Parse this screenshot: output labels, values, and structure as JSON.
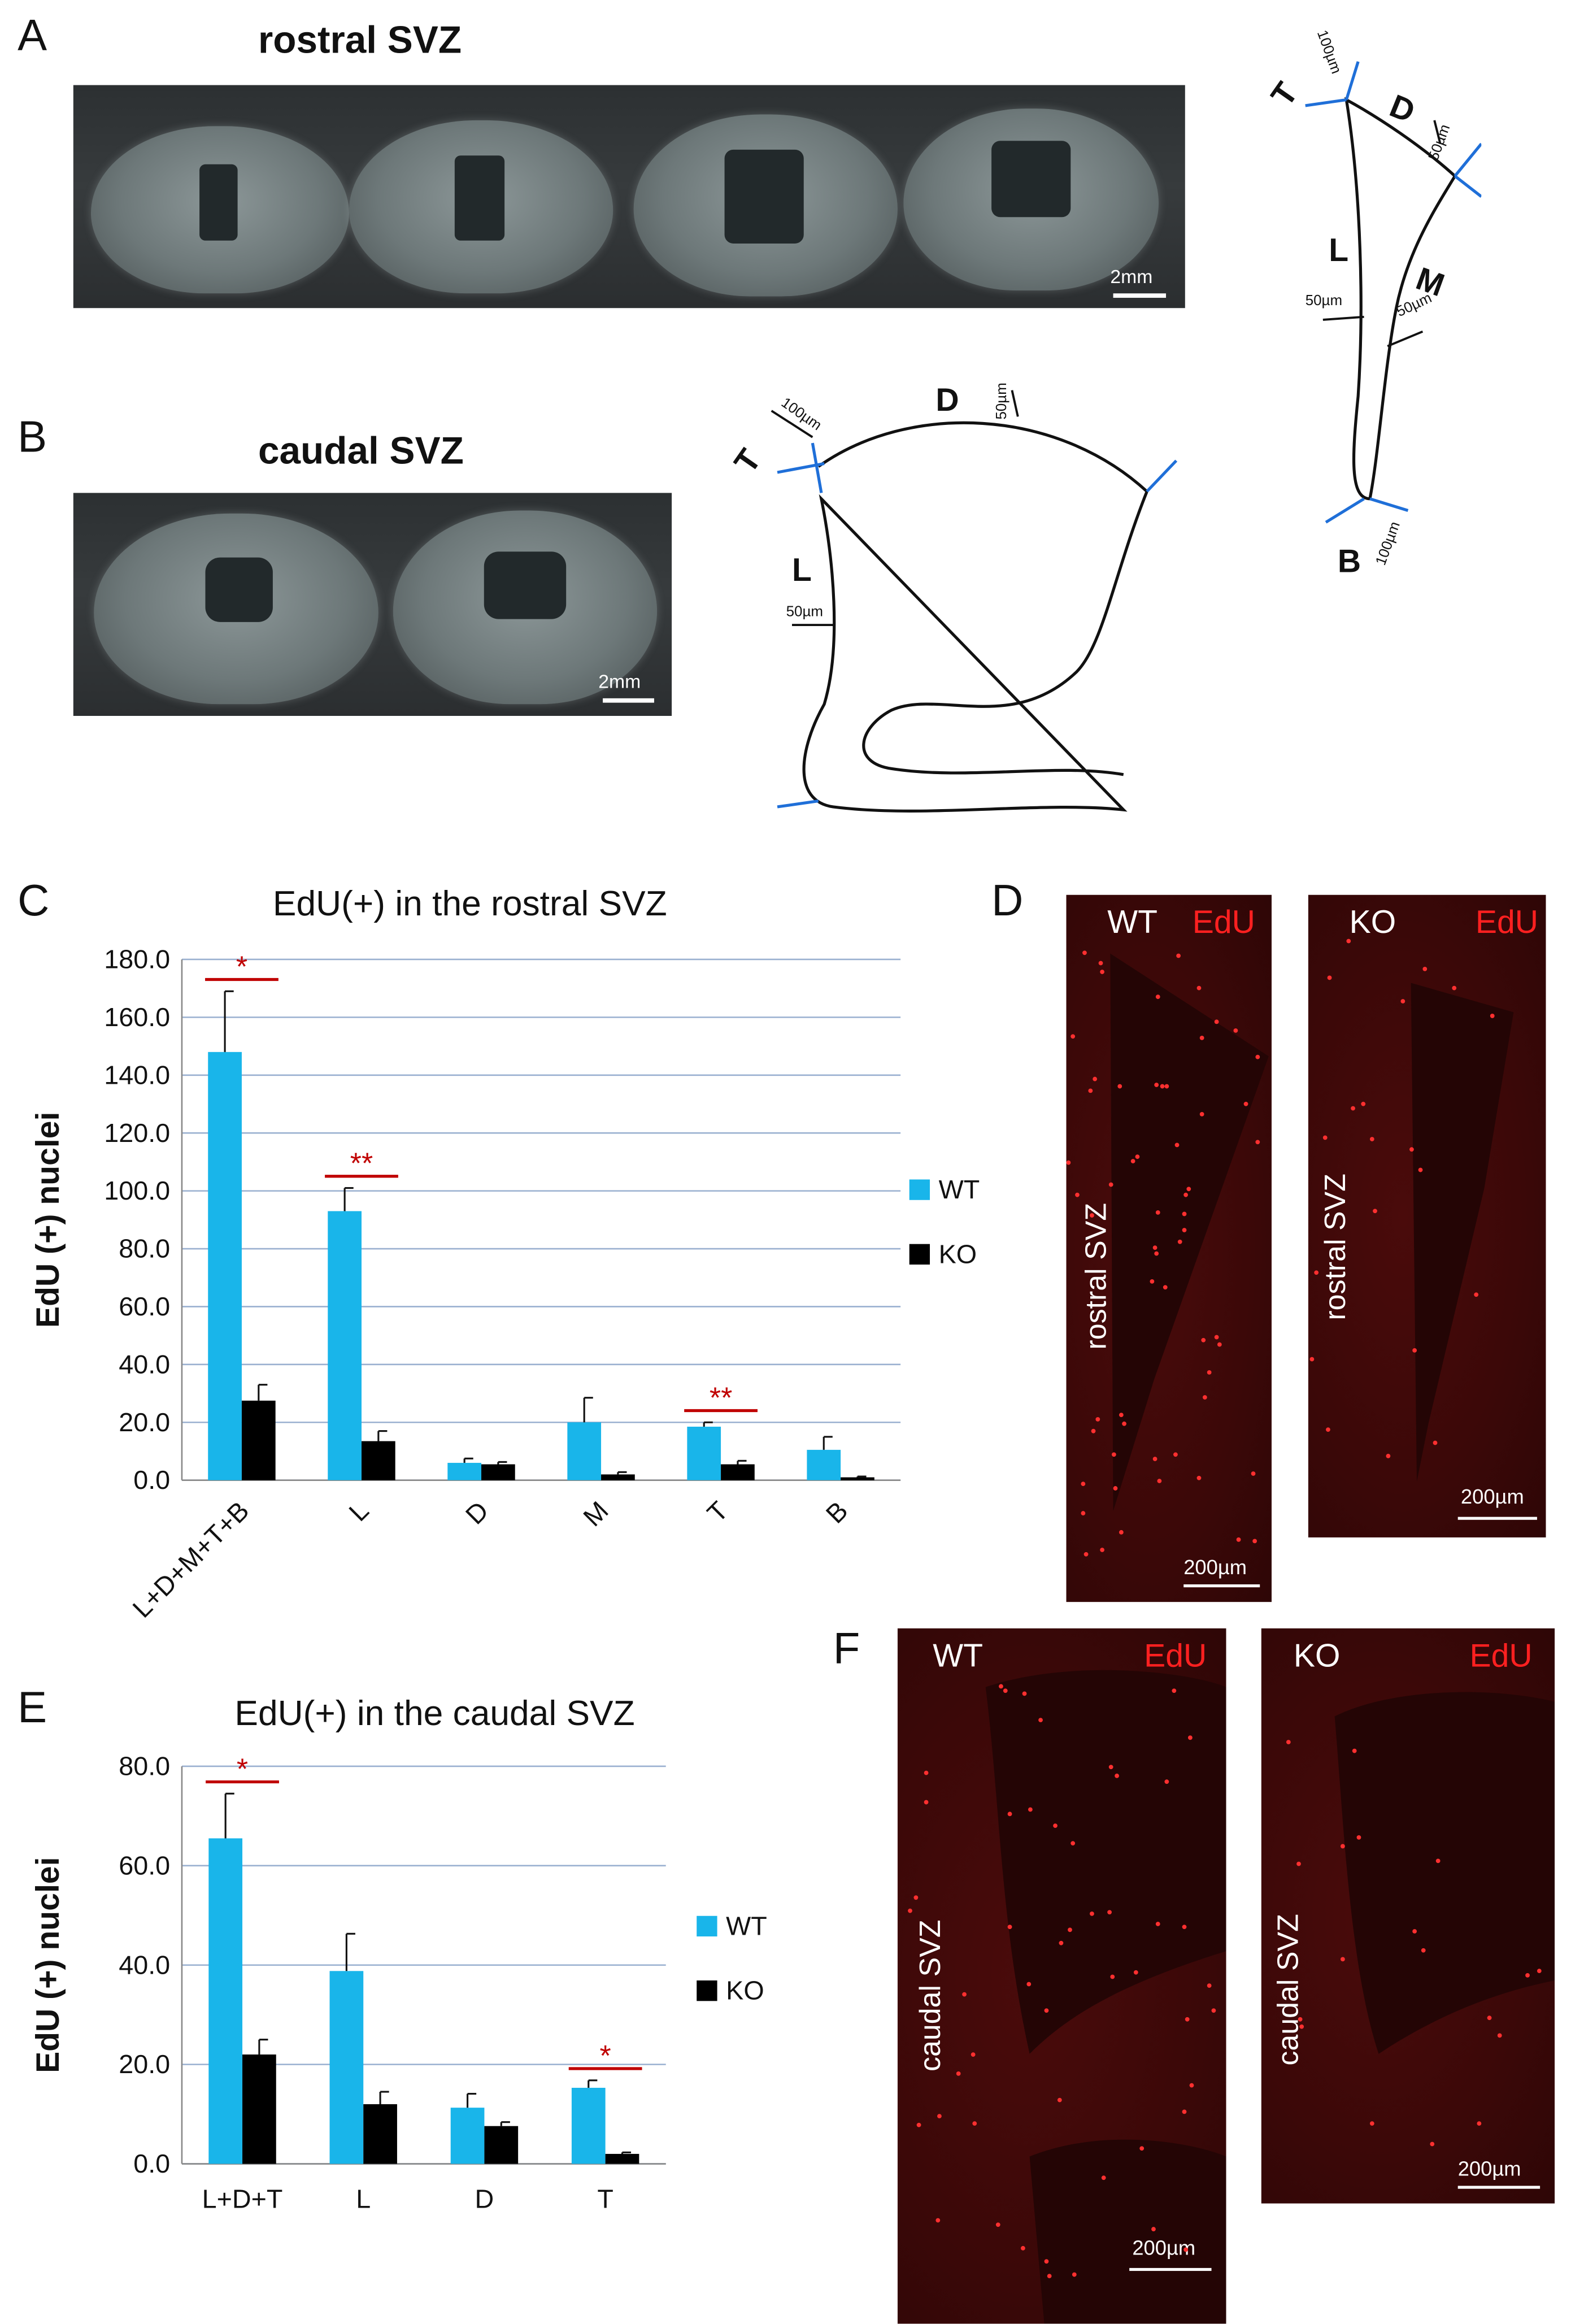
{
  "figure": {
    "panel_letters": [
      "A",
      "B",
      "C",
      "D",
      "E",
      "F"
    ],
    "rostral_title": "rostral SVZ",
    "caudal_title": "caudal SVZ",
    "scale_2mm": "2mm",
    "scale_200um": "200µm",
    "label_wt": "WT",
    "label_ko": "KO",
    "label_edu": "EdU",
    "rostral_svz_vertical": "rostral SVZ",
    "caudal_svz_vertical": "caudal SVZ"
  },
  "diagram_rostral": {
    "region_labels": [
      "T",
      "D",
      "L",
      "M",
      "B"
    ],
    "dim_labels": [
      "100µm",
      "50µm",
      "50µm",
      "50µm",
      "100µm"
    ]
  },
  "diagram_caudal": {
    "region_labels": [
      "D",
      "T",
      "L"
    ],
    "dim_labels": [
      "50µm",
      "100µm",
      "50µm"
    ]
  },
  "colors": {
    "wt_bar": "#19b5ea",
    "ko_bar": "#000000",
    "significance": "#c00000",
    "boundary_marker": "#1f6fd8"
  },
  "chart_data": [
    {
      "type": "bar",
      "title": "EdU(+) in the rostral SVZ",
      "ylabel": "EdU (+) nuclei",
      "categories": [
        "L+D+M+T+B",
        "L",
        "D",
        "M",
        "T",
        "B"
      ],
      "series": [
        {
          "name": "WT",
          "values": [
            148.0,
            93.0,
            6.0,
            20.0,
            18.5,
            10.5
          ],
          "errors": [
            21.0,
            8.0,
            1.5,
            8.5,
            1.5,
            4.5
          ]
        },
        {
          "name": "KO",
          "values": [
            27.5,
            13.5,
            5.5,
            2.0,
            5.5,
            1.0
          ],
          "errors": [
            5.5,
            3.5,
            0.8,
            0.8,
            1.2,
            0.3
          ]
        }
      ],
      "ylim": [
        0,
        180
      ],
      "yticks": [
        "0.0",
        "20.0",
        "40.0",
        "60.0",
        "80.0",
        "100.0",
        "120.0",
        "140.0",
        "160.0",
        "180.0"
      ],
      "significance": [
        {
          "category": "L+D+M+T+B",
          "label": "*"
        },
        {
          "category": "L",
          "label": "**"
        },
        {
          "category": "T",
          "label": "**"
        }
      ],
      "grid": true,
      "legend": "right"
    },
    {
      "type": "bar",
      "title": "EdU(+) in the caudal SVZ",
      "ylabel": "EdU (+) nuclei",
      "categories": [
        "L+D+T",
        "L",
        "D",
        "T"
      ],
      "series": [
        {
          "name": "WT",
          "values": [
            65.5,
            38.8,
            11.3,
            15.3
          ],
          "errors": [
            9.0,
            7.5,
            2.8,
            1.5
          ]
        },
        {
          "name": "KO",
          "values": [
            22.0,
            12.0,
            7.6,
            2.0
          ],
          "errors": [
            3.0,
            2.5,
            0.8,
            0.3
          ]
        }
      ],
      "ylim": [
        0,
        80
      ],
      "yticks": [
        "0.0",
        "20.0",
        "40.0",
        "60.0",
        "80.0"
      ],
      "significance": [
        {
          "category": "L+D+T",
          "label": "*"
        },
        {
          "category": "T",
          "label": "*"
        }
      ],
      "grid": true,
      "legend": "right"
    }
  ]
}
